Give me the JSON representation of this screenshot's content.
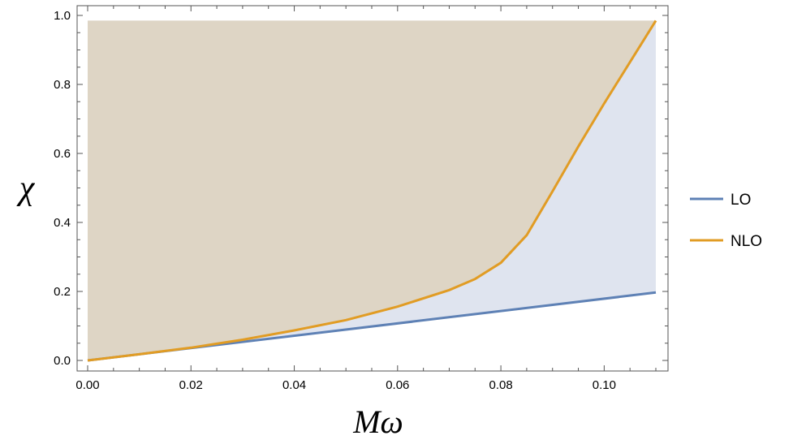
{
  "chart_data": {
    "type": "area",
    "xlabel": "Mω",
    "ylabel": "χ",
    "xlim": [
      0.0,
      0.11
    ],
    "ylim": [
      0.0,
      1.0
    ],
    "x_ticks": [
      "0.00",
      "0.02",
      "0.04",
      "0.06",
      "0.08",
      "0.10"
    ],
    "x_tick_values": [
      0.0,
      0.02,
      0.04,
      0.06,
      0.08,
      0.1
    ],
    "y_ticks": [
      "0.0",
      "0.2",
      "0.4",
      "0.6",
      "0.8",
      "1.0"
    ],
    "y_tick_values": [
      0.0,
      0.2,
      0.4,
      0.6,
      0.8,
      1.0
    ],
    "frame": true,
    "grid": false,
    "legend_position": "right",
    "series": [
      {
        "name": "LO",
        "color": "#5e81b5",
        "fill_color": "#dfe4ef",
        "x": [
          0.0,
          0.11
        ],
        "y": [
          0.0,
          0.197
        ]
      },
      {
        "name": "NLO",
        "color": "#e19c24",
        "fill_color": "#ded5c5",
        "x": [
          0.0,
          0.01,
          0.02,
          0.03,
          0.04,
          0.05,
          0.06,
          0.07,
          0.075,
          0.08,
          0.085,
          0.09,
          0.095,
          0.1,
          0.105,
          0.11
        ],
        "y": [
          0.0,
          0.018,
          0.037,
          0.06,
          0.087,
          0.117,
          0.156,
          0.204,
          0.236,
          0.283,
          0.363,
          0.49,
          0.62,
          0.745,
          0.865,
          0.985
        ]
      }
    ]
  }
}
